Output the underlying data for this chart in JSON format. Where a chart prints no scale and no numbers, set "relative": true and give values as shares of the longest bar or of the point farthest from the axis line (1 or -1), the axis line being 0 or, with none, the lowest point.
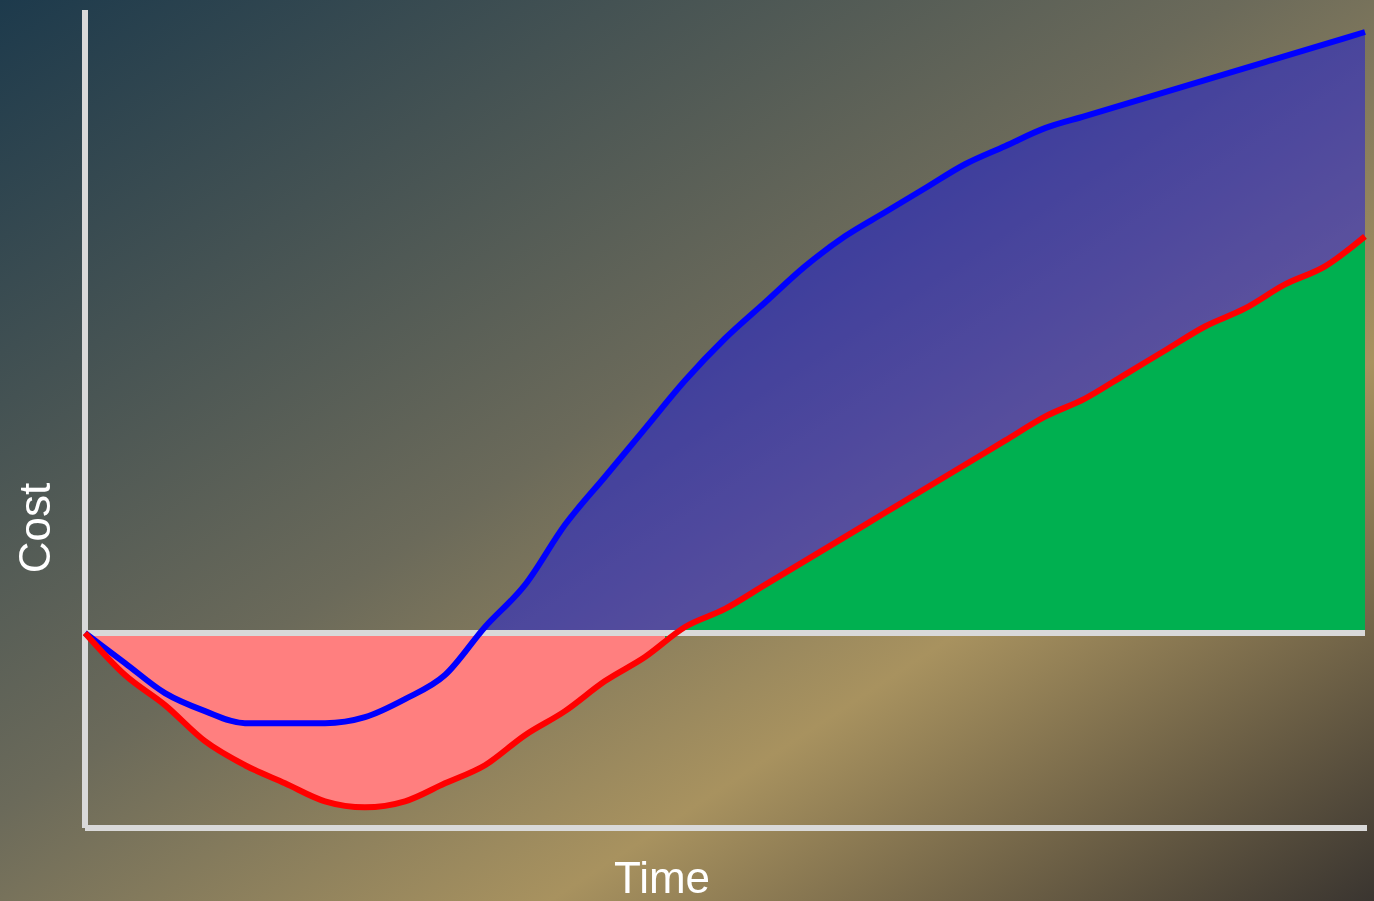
{
  "chart_data": {
    "type": "area",
    "relative": true,
    "xlabel": "Time",
    "ylabel": "Cost",
    "categories": [
      null,
      null,
      null,
      null,
      null,
      null,
      null,
      null,
      null,
      null,
      null,
      null,
      null,
      null,
      null,
      null,
      null,
      null,
      null,
      null,
      null,
      null,
      null,
      null,
      null,
      null,
      null,
      null,
      null,
      null,
      null,
      null,
      null
    ],
    "series": [
      {
        "color": "#0000ff",
        "values": [
          0,
          -0.05,
          -0.1,
          -0.13,
          -0.15,
          -0.15,
          -0.15,
          -0.14,
          -0.11,
          -0.07,
          0.01,
          0.08,
          0.18,
          0.26,
          0.34,
          0.42,
          0.49,
          0.55,
          0.61,
          0.66,
          0.7,
          0.74,
          0.78,
          0.81,
          0.84,
          0.86,
          0.88,
          0.9,
          0.92,
          0.94,
          0.96,
          0.98,
          1
        ]
      },
      {
        "color": "#ff0000",
        "colors": [
          "#ff7f7f",
          "#ff7f7f",
          "#ff7f7f",
          "#ff7f7f",
          "#ff7f7f",
          "#ff7f7f",
          "#ff7f7f",
          "#ff7f7f",
          "#ff7f7f",
          "#ff7f7f",
          "#ff7f7f",
          "#ff7f7f",
          "#ff7f7f",
          "#ff7f7f",
          "#ff7f7f",
          "#00b050",
          "#00b050",
          "#00b050",
          "#00b050",
          "#00b050",
          "#00b050",
          "#00b050",
          "#00b050",
          "#00b050",
          "#00b050",
          "#00b050",
          "#00b050",
          "#00b050",
          "#00b050",
          "#00b050",
          "#00b050",
          "#00b050",
          "#00b050"
        ],
        "values": [
          0,
          -0.07,
          -0.12,
          -0.18,
          -0.22,
          -0.25,
          -0.28,
          -0.29,
          -0.28,
          -0.25,
          -0.22,
          -0.17,
          -0.13,
          -0.08,
          -0.04,
          0.01,
          0.04,
          0.08,
          0.12,
          0.16,
          0.2,
          0.24,
          0.28,
          0.32,
          0.36,
          0.39,
          0.43,
          0.47,
          0.51,
          0.54,
          0.58,
          0.61,
          0.66
        ]
      }
    ]
  }
}
